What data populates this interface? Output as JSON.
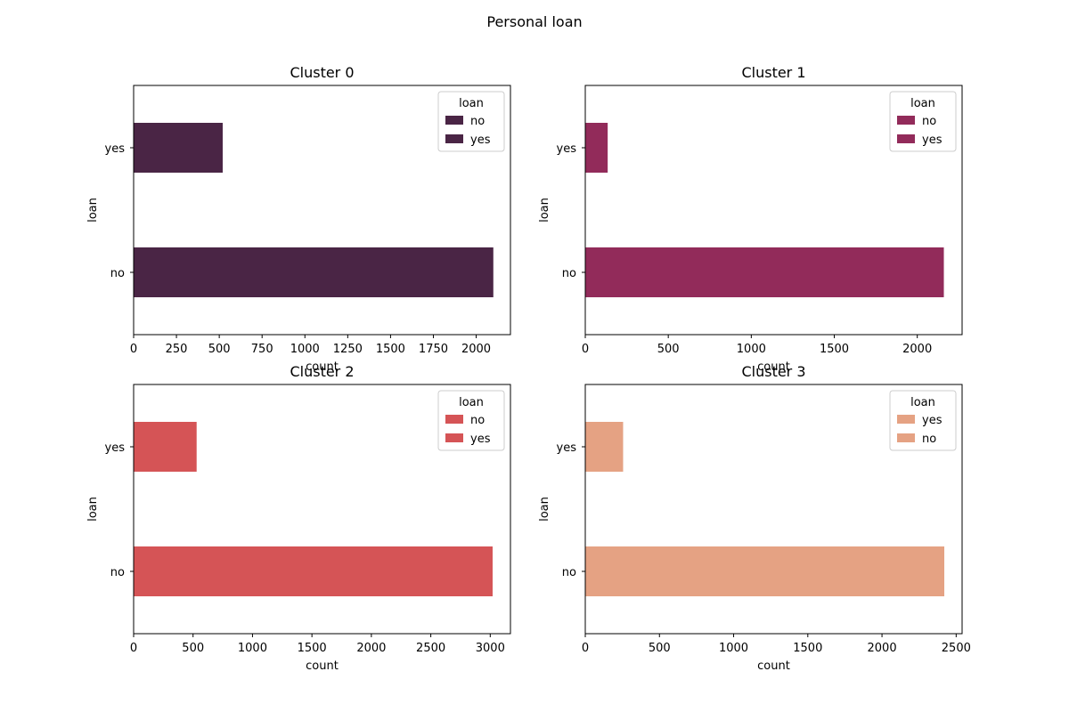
{
  "figure": {
    "suptitle": "Personal loan"
  },
  "chart_data": [
    {
      "type": "bar",
      "orientation": "horizontal",
      "title": "Cluster 0",
      "xlabel": "count",
      "ylabel": "loan",
      "categories": [
        "yes",
        "no"
      ],
      "values": [
        520,
        2100
      ],
      "xlim": [
        0,
        2200
      ],
      "xticks": [
        0,
        250,
        500,
        750,
        1000,
        1250,
        1500,
        1750,
        2000
      ],
      "color": "#4a2545",
      "legend": {
        "title": "loan",
        "entries": [
          "no",
          "yes"
        ],
        "placement": "upper right"
      }
    },
    {
      "type": "bar",
      "orientation": "horizontal",
      "title": "Cluster 1",
      "xlabel": "count",
      "ylabel": "loan",
      "categories": [
        "yes",
        "no"
      ],
      "values": [
        135,
        2160
      ],
      "xlim": [
        0,
        2270
      ],
      "xticks": [
        0,
        500,
        1000,
        1500,
        2000
      ],
      "color": "#922b5a",
      "legend": {
        "title": "loan",
        "entries": [
          "no",
          "yes"
        ],
        "placement": "upper right"
      }
    },
    {
      "type": "bar",
      "orientation": "horizontal",
      "title": "Cluster 2",
      "xlabel": "count",
      "ylabel": "loan",
      "categories": [
        "yes",
        "no"
      ],
      "values": [
        530,
        3020
      ],
      "xlim": [
        0,
        3170
      ],
      "xticks": [
        0,
        500,
        1000,
        1500,
        2000,
        2500,
        3000
      ],
      "color": "#d55456",
      "legend": {
        "title": "loan",
        "entries": [
          "no",
          "yes"
        ],
        "placement": "upper right"
      }
    },
    {
      "type": "bar",
      "orientation": "horizontal",
      "title": "Cluster 3",
      "xlabel": "count",
      "ylabel": "loan",
      "categories": [
        "yes",
        "no"
      ],
      "values": [
        255,
        2420
      ],
      "xlim": [
        0,
        2540
      ],
      "xticks": [
        0,
        500,
        1000,
        1500,
        2000,
        2500
      ],
      "color": "#e5a283",
      "legend": {
        "title": "loan",
        "entries": [
          "yes",
          "no"
        ],
        "placement": "upper right"
      }
    }
  ]
}
